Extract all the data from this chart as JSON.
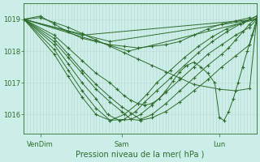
{
  "title": "Pression niveau de la mer( hPa )",
  "bg_color": "#cceee8",
  "line_color": "#2d6e2d",
  "grid_color_v": "#b8d8d0",
  "grid_color_h": "#c0ddd8",
  "text_color": "#2d6e2d",
  "ylim": [
    1015.4,
    1019.5
  ],
  "yticks": [
    1016,
    1017,
    1018,
    1019
  ],
  "xtick_labels": [
    "VenDim",
    "Sam",
    "Lun"
  ],
  "xtick_positions": [
    0.07,
    0.42,
    0.84
  ],
  "series": [
    {
      "x": [
        0.0,
        0.07,
        0.13,
        0.19,
        0.25,
        0.31,
        0.37,
        0.43,
        0.49,
        0.55,
        0.61,
        0.67,
        0.73,
        0.79,
        0.85,
        0.91,
        0.97,
        1.0
      ],
      "y": [
        1019.0,
        1019.1,
        1018.85,
        1018.6,
        1018.4,
        1018.3,
        1018.2,
        1018.15,
        1018.1,
        1018.15,
        1018.2,
        1018.3,
        1018.5,
        1018.7,
        1018.85,
        1018.95,
        1019.05,
        1019.0
      ]
    },
    {
      "x": [
        0.0,
        0.07,
        0.13,
        0.19,
        0.25,
        0.31,
        0.37,
        0.43,
        0.49,
        0.55,
        0.61,
        0.67,
        0.73,
        0.84,
        0.91,
        0.97,
        1.0
      ],
      "y": [
        1019.0,
        1019.05,
        1018.9,
        1018.75,
        1018.55,
        1018.35,
        1018.15,
        1017.95,
        1017.75,
        1017.55,
        1017.35,
        1017.15,
        1016.95,
        1016.8,
        1016.75,
        1016.82,
        1019.0
      ]
    },
    {
      "x": [
        0.0,
        0.13,
        0.19,
        0.25,
        0.31,
        0.37,
        0.42,
        0.46,
        0.5,
        0.55,
        0.61,
        0.67,
        0.73,
        0.79,
        0.85,
        0.91,
        0.97,
        1.0
      ],
      "y": [
        1019.0,
        1018.3,
        1017.8,
        1017.3,
        1016.8,
        1016.4,
        1016.1,
        1015.85,
        1015.82,
        1015.9,
        1016.1,
        1016.4,
        1016.75,
        1017.1,
        1017.5,
        1017.85,
        1018.2,
        1018.9
      ]
    },
    {
      "x": [
        0.0,
        0.13,
        0.19,
        0.25,
        0.31,
        0.36,
        0.41,
        0.46,
        0.5,
        0.55,
        0.61,
        0.67,
        0.73,
        0.79,
        0.85,
        0.91,
        0.97,
        1.0
      ],
      "y": [
        1019.0,
        1018.2,
        1017.6,
        1017.0,
        1016.5,
        1016.0,
        1015.82,
        1015.85,
        1016.0,
        1016.3,
        1016.7,
        1017.1,
        1017.5,
        1017.9,
        1018.2,
        1018.5,
        1018.75,
        1019.0
      ]
    },
    {
      "x": [
        0.0,
        0.13,
        0.19,
        0.25,
        0.31,
        0.37,
        0.43,
        0.48,
        0.52,
        0.57,
        0.63,
        0.69,
        0.75,
        0.81,
        0.87,
        0.93,
        1.0
      ],
      "y": [
        1019.0,
        1018.05,
        1017.4,
        1016.75,
        1016.2,
        1015.82,
        1015.85,
        1016.1,
        1016.4,
        1016.75,
        1017.15,
        1017.55,
        1017.95,
        1018.3,
        1018.6,
        1018.85,
        1019.1
      ]
    },
    {
      "x": [
        0.0,
        0.13,
        0.19,
        0.25,
        0.31,
        0.37,
        0.43,
        0.49,
        0.53,
        0.57,
        0.63,
        0.69,
        0.75,
        0.81,
        0.87,
        0.94,
        1.0
      ],
      "y": [
        1019.0,
        1017.9,
        1017.2,
        1016.55,
        1016.0,
        1015.82,
        1016.0,
        1016.35,
        1016.65,
        1017.0,
        1017.4,
        1017.8,
        1018.15,
        1018.45,
        1018.7,
        1018.9,
        1019.1
      ]
    },
    {
      "x": [
        0.0,
        0.25,
        1.0
      ],
      "y": [
        1019.0,
        1018.5,
        1019.0
      ]
    },
    {
      "x": [
        0.0,
        0.37,
        1.0
      ],
      "y": [
        1019.0,
        1018.3,
        1019.0
      ]
    },
    {
      "x": [
        0.0,
        0.45,
        1.0
      ],
      "y": [
        1019.0,
        1018.0,
        1019.0
      ]
    },
    {
      "x": [
        0.0,
        0.13,
        0.19,
        0.25,
        0.31,
        0.37,
        0.4,
        0.43,
        0.46,
        0.49,
        0.52,
        0.55,
        0.58,
        0.61,
        0.64,
        0.67,
        0.7,
        0.73,
        0.76,
        0.79,
        0.82,
        0.84,
        0.86,
        0.88,
        0.9,
        0.92,
        0.94,
        0.96,
        0.98,
        1.0
      ],
      "y": [
        1019.0,
        1018.5,
        1018.1,
        1017.7,
        1017.3,
        1017.0,
        1016.8,
        1016.6,
        1016.45,
        1016.35,
        1016.3,
        1016.35,
        1016.5,
        1016.75,
        1017.05,
        1017.35,
        1017.55,
        1017.65,
        1017.5,
        1017.3,
        1017.0,
        1015.9,
        1015.82,
        1016.1,
        1016.5,
        1017.0,
        1017.5,
        1018.0,
        1018.5,
        1019.0
      ]
    },
    {
      "x": [
        0.0,
        0.13,
        0.19,
        0.25,
        0.31,
        0.37,
        0.42,
        0.46,
        0.5,
        0.55,
        0.61,
        0.67,
        0.73,
        0.79,
        0.85,
        0.88,
        0.91,
        0.94,
        0.97,
        1.0
      ],
      "y": [
        1019.0,
        1018.4,
        1017.9,
        1017.4,
        1016.95,
        1016.55,
        1016.25,
        1016.05,
        1015.85,
        1016.0,
        1016.35,
        1016.75,
        1017.15,
        1017.55,
        1017.9,
        1018.1,
        1018.35,
        1018.6,
        1018.85,
        1019.05
      ]
    }
  ]
}
